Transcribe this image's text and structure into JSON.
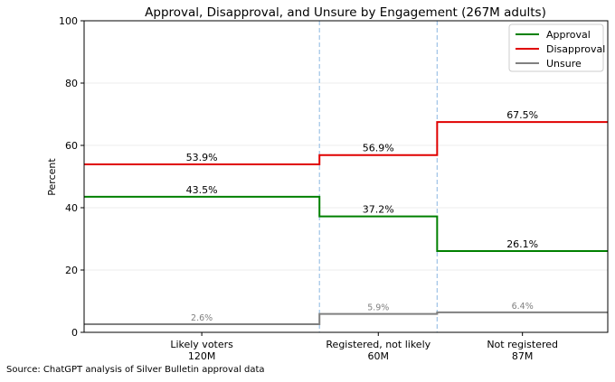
{
  "chart_data": {
    "type": "line",
    "title": "Approval, Disapproval, and Unsure by Engagement (267M adults)",
    "xlabel": "",
    "ylabel": "Percent",
    "ylim": [
      0,
      100
    ],
    "yticks": [
      0,
      20,
      40,
      60,
      80,
      100
    ],
    "grid": true,
    "legend_position": "top-right",
    "categories": [
      {
        "label": "Likely voters",
        "sublabel": "120M",
        "population_millions": 120
      },
      {
        "label": "Registered, not likely",
        "sublabel": "60M",
        "population_millions": 60
      },
      {
        "label": "Not registered",
        "sublabel": "87M",
        "population_millions": 87
      }
    ],
    "series": [
      {
        "name": "Approval",
        "color": "#008000",
        "values": [
          43.5,
          37.2,
          26.1
        ],
        "labels": [
          "43.5%",
          "37.2%",
          "26.1%"
        ],
        "label_color": "#000000"
      },
      {
        "name": "Disapproval",
        "color": "#e00000",
        "values": [
          53.9,
          56.9,
          67.5
        ],
        "labels": [
          "53.9%",
          "56.9%",
          "67.5%"
        ],
        "label_color": "#000000"
      },
      {
        "name": "Unsure",
        "color": "#808080",
        "values": [
          2.6,
          5.9,
          6.4
        ],
        "labels": [
          "2.6%",
          "5.9%",
          "6.4%"
        ],
        "label_color": "#808080"
      }
    ],
    "divider_color": "#9ec3e6"
  },
  "source": "Source: ChatGPT analysis of Silver Bulletin approval data"
}
